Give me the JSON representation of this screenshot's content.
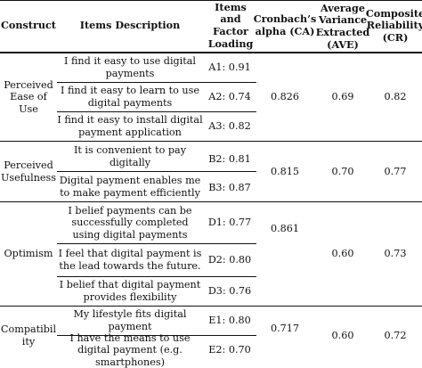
{
  "headers": {
    "construct": "Construct",
    "items": "Items Description",
    "loading": "Items and Factor Loading",
    "ca": "Cronbach’s alpha (CA)",
    "ave": "Average Variance Extracted (AVE)",
    "cr": "Composite Reliability (CR)"
  },
  "groups": [
    {
      "construct": "Perceived Ease of Use",
      "ca": "0.826",
      "ave": "0.69",
      "cr": "0.82",
      "items": [
        {
          "desc": "I find it easy to use digital payments",
          "loading": "A1: 0.91"
        },
        {
          "desc": "I find it easy to learn to use digital payments",
          "loading": "A2: 0.74"
        },
        {
          "desc": "I find it easy to install digital payment application",
          "loading": "A3: 0.82"
        }
      ]
    },
    {
      "construct": "Perceived Usefulness",
      "ca": "0.815",
      "ave": "0.70",
      "cr": "0.77",
      "items": [
        {
          "desc": "It is convenient to pay digitally",
          "loading": "B2: 0.81"
        },
        {
          "desc": "Digital payment enables me to make payment efficiently",
          "loading": "B3: 0.87"
        }
      ]
    },
    {
      "construct": "Optimism",
      "ca": "0.861",
      "ave": "0.60",
      "cr": "0.73",
      "items": [
        {
          "desc": "I belief payments can be successfully completed using digital payments",
          "loading": "D1: 0.77"
        },
        {
          "desc": "I feel that digital payment is the lead towards the future.",
          "loading": "D2: 0.80"
        },
        {
          "desc": "I belief that digital payment provides flexibility",
          "loading": "D3: 0.76"
        }
      ]
    },
    {
      "construct": "Compatibility",
      "ca": "0.717",
      "ave": "0.60",
      "cr": "0.72",
      "items": [
        {
          "desc": "My lifestyle fits digital payment",
          "loading": "E1: 0.80"
        },
        {
          "desc": "I have the means to use digital payment (e.g. smartphones)",
          "loading": "E2: 0.70"
        }
      ]
    }
  ]
}
